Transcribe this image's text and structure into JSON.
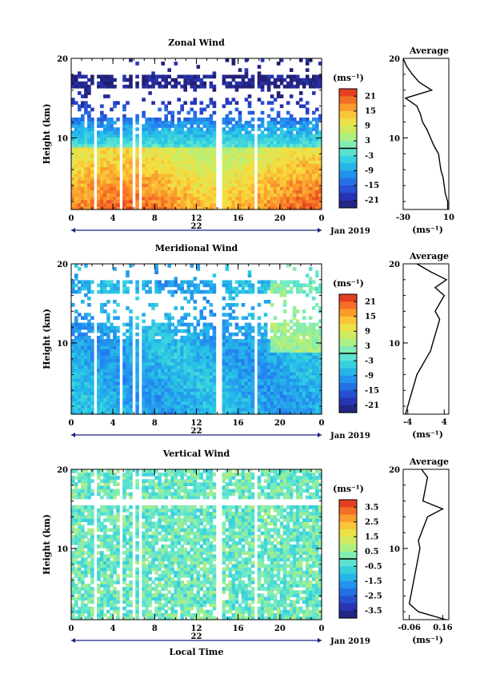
{
  "chart_data": [
    {
      "type": "heatmap",
      "title": "Zonal Wind",
      "ylabel": "Height (km)",
      "xlabel": "",
      "x_ticks": [
        "0",
        "4",
        "8",
        "12",
        "16",
        "20",
        "0"
      ],
      "y_ticks": [
        "10",
        "20"
      ],
      "date_tick": "22",
      "date_label": "Jan 2019",
      "xlim": [
        0,
        24
      ],
      "ylim": [
        1,
        20
      ],
      "colorbar": {
        "label": "(ms⁻¹)",
        "ticks": [
          "21",
          "15",
          "9",
          "3",
          "-3",
          "-9",
          "-15",
          "-21"
        ],
        "range": [
          -24,
          24
        ]
      },
      "data_gaps_hours": [
        [
          2.2,
          2.6
        ],
        [
          4.5,
          4.8
        ],
        [
          5.9,
          6.2
        ],
        [
          6.6,
          6.9
        ],
        [
          14.0,
          14.4
        ],
        [
          17.5,
          17.8
        ]
      ],
      "profile": {
        "title": "Average",
        "xlabel": "(ms⁻¹)",
        "x_ticks": [
          "-30",
          "10"
        ],
        "xlim": [
          -30,
          10
        ],
        "height": [
          1,
          2,
          3,
          4,
          5,
          6,
          7,
          8,
          9,
          10,
          11,
          12,
          13,
          14,
          15,
          16,
          17,
          18,
          19,
          20
        ],
        "values": [
          9,
          9,
          7,
          6,
          5,
          3,
          2,
          1,
          -3,
          -6,
          -9,
          -13,
          -15,
          -18,
          -28,
          -5,
          -16,
          -22,
          -27,
          -30
        ]
      }
    },
    {
      "type": "heatmap",
      "title": "Meridional Wind",
      "ylabel": "Height (km)",
      "xlabel": "",
      "x_ticks": [
        "0",
        "4",
        "8",
        "12",
        "16",
        "20",
        "0"
      ],
      "y_ticks": [
        "10",
        "20"
      ],
      "date_tick": "22",
      "date_label": "Jan 2019",
      "xlim": [
        0,
        24
      ],
      "ylim": [
        1,
        20
      ],
      "colorbar": {
        "label": "(ms⁻¹)",
        "ticks": [
          "21",
          "15",
          "9",
          "3",
          "-3",
          "-9",
          "-15",
          "-21"
        ],
        "range": [
          -24,
          24
        ]
      },
      "data_gaps_hours": [
        [
          2.2,
          2.6
        ],
        [
          4.5,
          4.8
        ],
        [
          5.9,
          6.2
        ],
        [
          6.6,
          6.9
        ],
        [
          14.0,
          14.4
        ],
        [
          17.5,
          17.8
        ]
      ],
      "profile": {
        "title": "Average",
        "xlabel": "(ms⁻¹)",
        "x_ticks": [
          "-4",
          "4"
        ],
        "xlim": [
          -5,
          5
        ],
        "height": [
          1,
          2,
          3,
          4,
          5,
          6,
          7,
          8,
          9,
          10,
          11,
          12,
          13,
          14,
          15,
          16,
          17,
          18,
          19,
          20
        ],
        "values": [
          -4.5,
          -4.0,
          -3.5,
          -3.0,
          -2.5,
          -2.0,
          -1.0,
          0.0,
          1.0,
          1.5,
          2.0,
          2.5,
          3.0,
          2.0,
          3.0,
          4.0,
          2.0,
          4.5,
          1.0,
          -2.0
        ]
      }
    },
    {
      "type": "heatmap",
      "title": "Vertical Wind",
      "ylabel": "Height (km)",
      "xlabel": "Local Time",
      "x_ticks": [
        "0",
        "4",
        "8",
        "12",
        "16",
        "20",
        "0"
      ],
      "y_ticks": [
        "10",
        "20"
      ],
      "date_tick": "22",
      "date_label": "Jan 2019",
      "xlim": [
        0,
        24
      ],
      "ylim": [
        1,
        20
      ],
      "colorbar": {
        "label": "(ms⁻¹)",
        "ticks": [
          "3.5",
          "2.5",
          "1.5",
          "0.5",
          "-0.5",
          "-1.5",
          "-2.5",
          "-3.5"
        ],
        "range": [
          -4,
          4
        ]
      },
      "data_gaps_hours": [
        [
          2.2,
          2.6
        ],
        [
          4.5,
          4.8
        ],
        [
          5.9,
          6.2
        ],
        [
          6.6,
          6.9
        ],
        [
          14.0,
          14.4
        ],
        [
          17.5,
          17.8
        ]
      ],
      "profile": {
        "title": "Average",
        "xlabel": "(ms⁻¹)",
        "x_ticks": [
          "-0.06",
          "0.16"
        ],
        "xlim": [
          -0.1,
          0.2
        ],
        "height": [
          1,
          2,
          3,
          4,
          5,
          6,
          7,
          8,
          9,
          10,
          11,
          12,
          13,
          14,
          15,
          16,
          17,
          18,
          19,
          20
        ],
        "values": [
          0.18,
          0.0,
          -0.06,
          -0.05,
          -0.04,
          -0.03,
          -0.02,
          -0.01,
          0.0,
          0.01,
          0.0,
          0.02,
          0.04,
          0.06,
          0.16,
          0.03,
          0.04,
          0.05,
          0.06,
          0.02
        ]
      }
    }
  ]
}
